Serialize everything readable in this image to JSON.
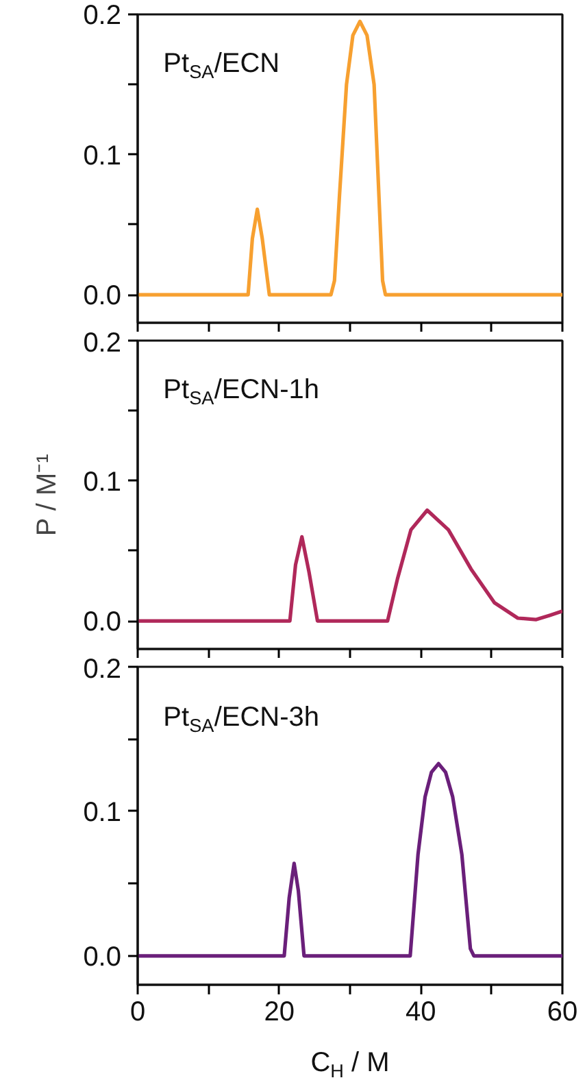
{
  "chart_data": [
    {
      "type": "line",
      "title": "Pt$_{SA}$/ECN",
      "xlim": [
        0,
        60
      ],
      "xticks": [
        0,
        {
          "value": 10,
          "label": null
        },
        20,
        {
          "value": 30,
          "label": null
        },
        40,
        {
          "value": 50,
          "label": null
        },
        60
      ],
      "ylim": [
        -0.02,
        0.2
      ],
      "yticks": [
        {
          "value": 0,
          "label": "0.0"
        },
        {
          "value": 0.05,
          "label": null
        },
        {
          "value": 0.1,
          "label": "0.1"
        },
        {
          "value": 0.15,
          "label": null
        },
        {
          "value": 0.2,
          "label": "0.2"
        }
      ],
      "tick_labels": "y",
      "grid": false,
      "series": [
        {
          "color": "#f7a030",
          "x": [
            0,
            15.6,
            16.2,
            16.9,
            17.6,
            18.6,
            27.3,
            27.8,
            28.5,
            29.5,
            30.4,
            31.4,
            32.4,
            33.4,
            34.0,
            34.6,
            35.0,
            60
          ],
          "values": [
            0,
            0,
            0.04,
            0.061,
            0.04,
            0,
            0,
            0.01,
            0.07,
            0.15,
            0.185,
            0.195,
            0.185,
            0.15,
            0.08,
            0.01,
            0,
            0
          ]
        }
      ]
    },
    {
      "type": "line",
      "title": "Pt$_{SA}$/ECN-1h",
      "ylabel": "P / M⁻¹",
      "xlim": [
        0,
        60
      ],
      "xticks": [
        0,
        {
          "value": 10,
          "label": null
        },
        20,
        {
          "value": 30,
          "label": null
        },
        40,
        {
          "value": 50,
          "label": null
        },
        60
      ],
      "ylim": [
        -0.02,
        0.2
      ],
      "yticks": [
        {
          "value": 0,
          "label": "0.0"
        },
        {
          "value": 0.05,
          "label": null
        },
        {
          "value": 0.1,
          "label": "0.1"
        },
        {
          "value": 0.15,
          "label": null
        },
        {
          "value": 0.2,
          "label": "0.2"
        }
      ],
      "tick_labels": "y",
      "grid": false,
      "series": [
        {
          "color": "#b0285a",
          "x": [
            0,
            21.5,
            22.3,
            23.2,
            24.2,
            25.4,
            35.3,
            36.7,
            38.6,
            40.9,
            43.9,
            47.1,
            50.4,
            53.7,
            56.3,
            58.2,
            60
          ],
          "values": [
            0,
            0,
            0.04,
            0.06,
            0.035,
            0,
            0,
            0.03,
            0.065,
            0.079,
            0.065,
            0.037,
            0.013,
            0.002,
            0.001,
            0.004,
            0.007
          ]
        }
      ]
    },
    {
      "type": "line",
      "title": "Pt$_{SA}$/ECN-3h",
      "xlabel": "C$_{H}$ / M",
      "xlim": [
        0,
        60
      ],
      "xticks": [
        0,
        {
          "value": 10,
          "label": null
        },
        20,
        {
          "value": 30,
          "label": null
        },
        40,
        {
          "value": 50,
          "label": null
        },
        60
      ],
      "ylim": [
        -0.02,
        0.2
      ],
      "yticks": [
        {
          "value": 0,
          "label": "0.0"
        },
        {
          "value": 0.05,
          "label": null
        },
        {
          "value": 0.1,
          "label": "0.1"
        },
        {
          "value": 0.15,
          "label": null
        },
        {
          "value": 0.2,
          "label": "0.2"
        }
      ],
      "grid": false,
      "series": [
        {
          "color": "#6a1f7a",
          "x": [
            0,
            20.7,
            21.4,
            22.1,
            22.7,
            23.5,
            38.5,
            39.6,
            40.6,
            41.5,
            42.5,
            43.5,
            44.5,
            45.8,
            47.0,
            47.5,
            60
          ],
          "values": [
            0,
            0,
            0.04,
            0.064,
            0.045,
            0,
            0,
            0.07,
            0.11,
            0.127,
            0.133,
            0.127,
            0.11,
            0.07,
            0.005,
            0,
            0
          ]
        }
      ]
    }
  ]
}
